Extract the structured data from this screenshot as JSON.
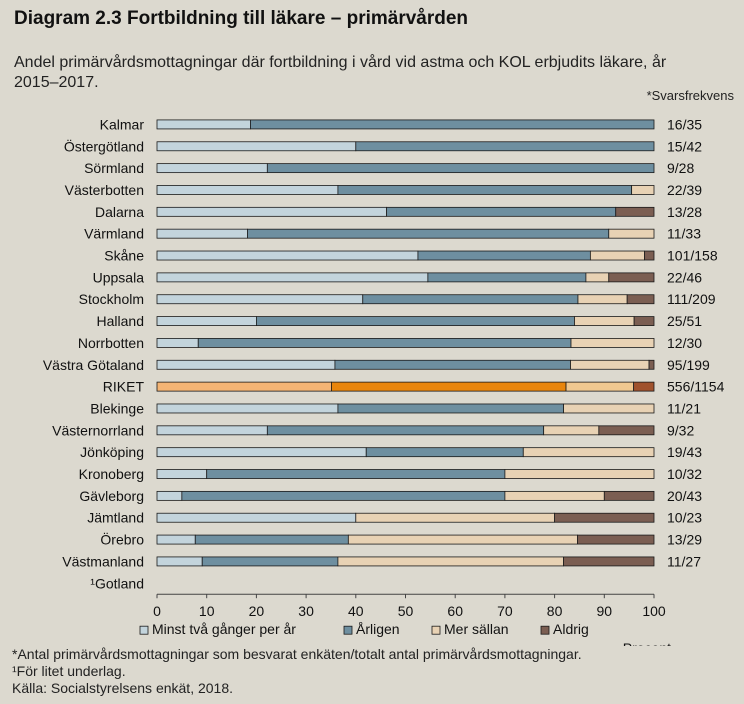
{
  "header": {
    "title": "Diagram 2.3 Fortbildning till läkare – primärvården",
    "subtitle": "Andel primärvårdsmottagningar där fortbildning i vård vid astma och KOL erbjudits läkare, år 2015–2017.",
    "response_rate_label": "*Svarsfrekvens"
  },
  "footnotes": {
    "note1": "*Antal primärvårdsmottagningar som besvarat enkäten/totalt antal primärvårdsmottagningar.",
    "note2": "¹För litet underlag.",
    "source": "Källa:  Socialstyrelsens enkät, 2018."
  },
  "colors": {
    "minst_tva": "#c3d4dc",
    "arligen": "#6e8fa0",
    "mer_sallan": "#e8d2b4",
    "aldrig": "#7b5e52",
    "riket_minst_tva": "#f4b474",
    "riket_arligen": "#e8850c",
    "riket_mer_sallan": "#f0c890",
    "riket_aldrig": "#a0522d",
    "bar_edge": "#1a1a1a"
  },
  "chart_data": {
    "type": "bar",
    "orientation": "horizontal",
    "stacked": true,
    "xlabel": "Procent",
    "xlim": [
      0,
      100
    ],
    "xticks": [
      0,
      10,
      20,
      30,
      40,
      50,
      60,
      70,
      80,
      90,
      100
    ],
    "legend_position": "bottom",
    "highlight_category": "RIKET",
    "categories": [
      "Kalmar",
      "Östergötland",
      "Sörmland",
      "Västerbotten",
      "Dalarna",
      "Värmland",
      "Skåne",
      "Uppsala",
      "Stockholm",
      "Halland",
      "Norrbotten",
      "Västra Götaland",
      "RIKET",
      "Blekinge",
      "Västernorrland",
      "Jönköping",
      "Kronoberg",
      "Gävleborg",
      "Jämtland",
      "Örebro",
      "Västmanland",
      "¹Gotland"
    ],
    "response_rates": [
      "16/35",
      "15/42",
      "9/28",
      "22/39",
      "13/28",
      "11/33",
      "101/158",
      "22/46",
      "111/209",
      "25/51",
      "12/30",
      "95/199",
      "556/1154",
      "11/21",
      "9/32",
      "19/43",
      "10/32",
      "20/43",
      "10/23",
      "13/29",
      "11/27",
      ""
    ],
    "series": [
      {
        "name": "Minst två gånger per år",
        "values": [
          18.8,
          40.0,
          22.2,
          36.4,
          46.2,
          18.2,
          52.5,
          54.5,
          41.4,
          20.0,
          8.3,
          35.8,
          35.1,
          36.4,
          22.2,
          42.1,
          10.0,
          5.0,
          40.0,
          7.7,
          9.1,
          null
        ]
      },
      {
        "name": "Årligen",
        "values": [
          81.2,
          60.0,
          77.8,
          59.1,
          46.1,
          72.7,
          34.7,
          31.8,
          43.3,
          64.0,
          75.0,
          47.4,
          47.2,
          45.4,
          55.6,
          31.6,
          60.0,
          65.0,
          0.0,
          30.8,
          27.3,
          null
        ]
      },
      {
        "name": "Mer sällan",
        "values": [
          0.0,
          0.0,
          0.0,
          4.5,
          0.0,
          9.1,
          10.9,
          4.6,
          9.9,
          12.0,
          16.7,
          15.8,
          13.6,
          18.2,
          11.1,
          26.3,
          30.0,
          20.0,
          40.0,
          46.1,
          45.4,
          null
        ]
      },
      {
        "name": "Aldrig",
        "values": [
          0.0,
          0.0,
          0.0,
          0.0,
          7.7,
          0.0,
          1.9,
          9.1,
          5.4,
          4.0,
          0.0,
          1.0,
          4.1,
          0.0,
          11.1,
          0.0,
          0.0,
          10.0,
          20.0,
          15.4,
          18.2,
          null
        ]
      }
    ]
  }
}
